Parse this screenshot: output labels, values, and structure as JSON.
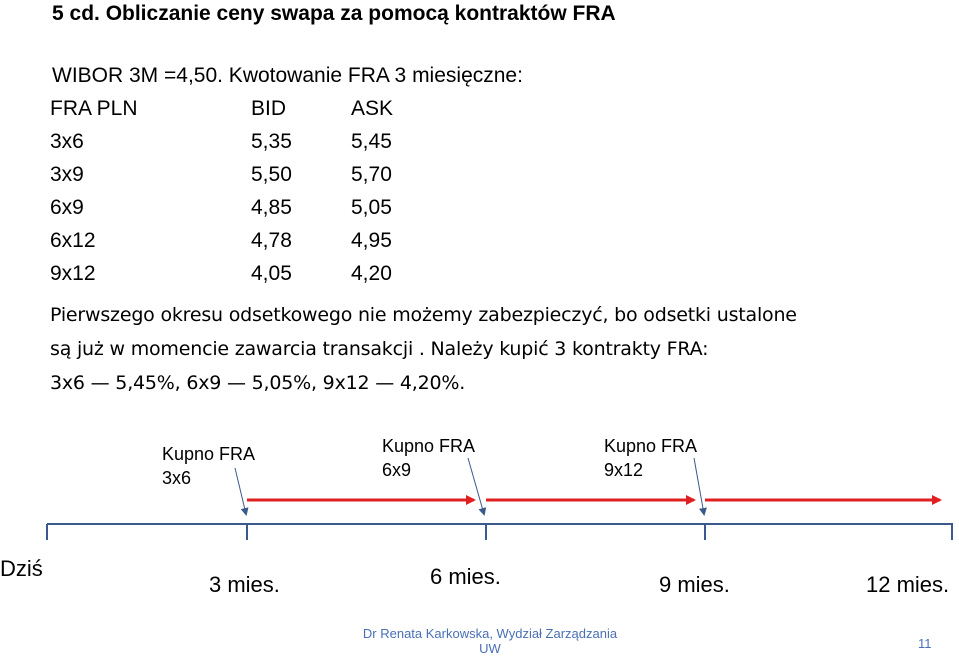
{
  "title": "5 cd. Obliczanie ceny swapa za pomocą kontraktów FRA",
  "intro": "WIBOR 3M =4,50. Kwotowanie FRA 3 miesięczne:",
  "quote_table": {
    "headers": [
      "FRA PLN",
      "BID",
      "ASK"
    ],
    "rows": [
      [
        "3x6",
        "5,35",
        "5,45"
      ],
      [
        "3x9",
        "5,50",
        "5,70"
      ],
      [
        "6x9",
        "4,85",
        "5,05"
      ],
      [
        "6x12",
        "4,78",
        "4,95"
      ],
      [
        "9x12",
        "4,05",
        "4,20"
      ]
    ]
  },
  "paragraph": [
    "Pierwszego okresu odsetkowego nie możemy zabezpieczyć, bo odsetki ustalone",
    "są już w momencie zawarcia transakcji . Należy kupić 3 kontrakty FRA:",
    "3x6 — 5,45%, 6x9 — 5,05%, 9x12 — 4,20%."
  ],
  "timeline": {
    "purchases": [
      {
        "line1": "Kupno FRA",
        "line2": "3x6"
      },
      {
        "line1": "Kupno FRA",
        "line2": "6x9"
      },
      {
        "line1": "Kupno FRA",
        "line2": "9x12"
      }
    ],
    "ticks": [
      "Dziś",
      "3 mies.",
      "6 mies.",
      "9 mies.",
      "12 mies."
    ],
    "arrow_color": "#e02020",
    "axis_color": "#3a5a8c"
  },
  "footer": {
    "line1": "Dr Renata Karkowska, Wydział Zarządzania",
    "line2": "UW",
    "page": "11"
  }
}
